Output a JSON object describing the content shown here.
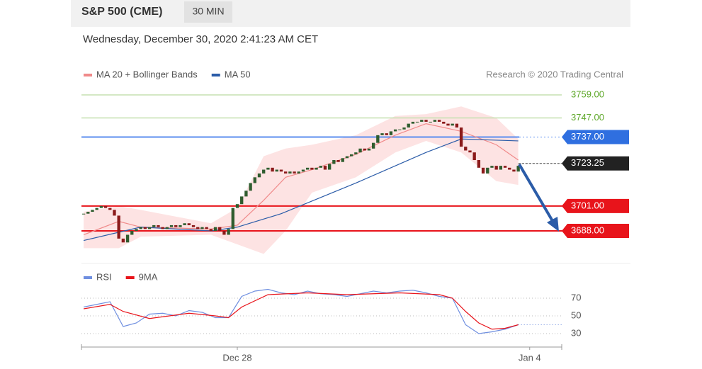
{
  "header": {
    "title": "S&P 500 (CME)",
    "interval": "30 MIN",
    "date": "Wednesday, December 30, 2020 2:41:23 AM CET"
  },
  "chart_data": [
    {
      "type": "candlestick",
      "credit": "Research © 2020 Trading Central",
      "xlim": [
        -0.5,
        108.9
      ],
      "ylim": [
        3673.6,
        3764.2
      ],
      "up_color": "#2f5d2f",
      "down_color": "#8b1a1a",
      "closes": [
        3697,
        3698,
        3699,
        3700,
        3701,
        3700,
        3699,
        3696,
        3684,
        3682,
        3686,
        3688,
        3689,
        3690,
        3689,
        3690,
        3691,
        3690,
        3689,
        3690,
        3691,
        3690,
        3691,
        3692,
        3691,
        3690,
        3689,
        3690,
        3689,
        3688,
        3690,
        3688,
        3686,
        3689,
        3700,
        3702,
        3706,
        3709,
        3713,
        3716,
        3718,
        3720,
        3721,
        3719,
        3720,
        3719,
        3718,
        3719,
        3718,
        3719,
        3720,
        3721,
        3720,
        3721,
        3722,
        3720,
        3723,
        3725,
        3724,
        3726,
        3727,
        3728,
        3729,
        3731,
        3730,
        3731,
        3734,
        3738,
        3739,
        3738,
        3740,
        3741,
        3741,
        3742,
        3744,
        3745,
        3745,
        3746,
        3745,
        3745,
        3746,
        3745,
        3744,
        3743,
        3744,
        3742,
        3732,
        3730,
        3729,
        3725,
        3721,
        3718,
        3721,
        3722,
        3720,
        3722,
        3721,
        3720,
        3719,
        3722
      ],
      "overlays": [
        {
          "name": "MA 20 + Bollinger Bands",
          "color": "#f08a8a",
          "band_color": "#fde3e3",
          "x": [
            0,
            8,
            13,
            29,
            35,
            41,
            46,
            52,
            62,
            71,
            78,
            86,
            94,
            99
          ],
          "values": [
            3686,
            3693,
            3690,
            3689,
            3691,
            3704,
            3716,
            3720,
            3728,
            3738,
            3744,
            3740,
            3733,
            3725
          ],
          "upper": [
            3698,
            3701,
            3699,
            3692,
            3700,
            3727,
            3731,
            3733,
            3738,
            3748,
            3749,
            3753,
            3747,
            3736
          ],
          "lower": [
            3679,
            3679,
            3685,
            3686,
            3681,
            3676,
            3688,
            3708,
            3716,
            3729,
            3735,
            3729,
            3714,
            3712
          ]
        },
        {
          "name": "MA 50",
          "color": "#2b5ca8",
          "x": [
            0,
            13,
            29,
            35,
            45,
            62,
            78,
            86,
            99
          ],
          "values": [
            3683,
            3690,
            3688,
            3690,
            3697,
            3713,
            3729,
            3736,
            3735
          ]
        }
      ],
      "levels": [
        {
          "value": 3759,
          "label": "3759.00",
          "color": "#5fa82a",
          "line_color": "#c5e0b0",
          "box": false,
          "dotted_tail": false
        },
        {
          "value": 3747,
          "label": "3747.00",
          "color": "#5fa82a",
          "line_color": "#c5e0b0",
          "box": false,
          "dotted_tail": false
        },
        {
          "value": 3737,
          "label": "3737.00",
          "color": "#2f6fe0",
          "line_color": "#5b8def",
          "box": true,
          "dotted_tail": true
        },
        {
          "value": 3723.25,
          "label": "3723.25",
          "color": "#222222",
          "line_color": "#555555",
          "box": true,
          "dotted_tail": true,
          "current": true
        },
        {
          "value": 3701,
          "label": "3701.00",
          "color": "#e8141b",
          "line_color": "#e8141b",
          "box": true,
          "dotted_tail": false
        },
        {
          "value": 3688,
          "label": "3688.00",
          "color": "#e8141b",
          "line_color": "#e8141b",
          "box": true,
          "dotted_tail": false
        }
      ]
    },
    {
      "type": "line",
      "xlim": [
        -0.5,
        108.9
      ],
      "ylim": [
        17.2,
        82.8
      ],
      "yticks": [
        70,
        50,
        30
      ],
      "grid": "dotted",
      "xticks": [
        {
          "value": 35,
          "label": "Dec 28"
        },
        {
          "value": 101.6,
          "label": "Jan 4"
        }
      ],
      "series": [
        {
          "name": "RSI",
          "color": "#6f8fe0",
          "x": [
            0,
            3,
            6,
            9,
            12,
            15,
            18,
            21,
            24,
            27,
            30,
            33,
            36,
            39,
            42,
            45,
            48,
            51,
            54,
            57,
            60,
            63,
            66,
            69,
            72,
            75,
            78,
            81,
            84,
            87,
            90,
            93,
            96,
            99
          ],
          "values": [
            60,
            63,
            66,
            38,
            42,
            52,
            53,
            50,
            56,
            54,
            48,
            48,
            72,
            78,
            80,
            76,
            74,
            78,
            75,
            74,
            72,
            75,
            78,
            76,
            78,
            79,
            76,
            72,
            70,
            40,
            30,
            32,
            35,
            40
          ]
        },
        {
          "name": "9MA",
          "color": "#e8141b",
          "x": [
            0,
            6,
            9,
            15,
            24,
            30,
            33,
            36,
            42,
            51,
            60,
            72,
            81,
            84,
            87,
            90,
            93,
            96,
            99
          ],
          "values": [
            58,
            63,
            55,
            47,
            53,
            50,
            48,
            60,
            74,
            76,
            74,
            76,
            74,
            70,
            55,
            42,
            35,
            36,
            40
          ]
        }
      ]
    }
  ]
}
